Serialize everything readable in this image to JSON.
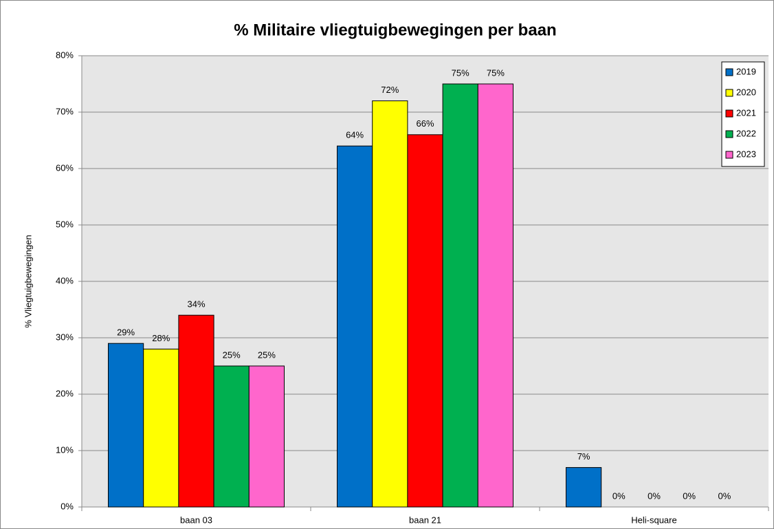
{
  "chart_data": {
    "type": "bar",
    "title": "% Militaire vliegtuigbewegingen per baan",
    "y_label": "% Vliegtuigbewegingen",
    "categories": [
      "baan 03",
      "baan 21",
      "Heli-square"
    ],
    "series": [
      {
        "name": "2019",
        "color": "#0070c8",
        "values": [
          29,
          64,
          7
        ],
        "value_labels": [
          "29%",
          "64%",
          "7%"
        ]
      },
      {
        "name": "2020",
        "color": "#ffff00",
        "values": [
          28,
          72,
          0
        ],
        "value_labels": [
          "28%",
          "72%",
          "0%"
        ]
      },
      {
        "name": "2021",
        "color": "#ff0000",
        "values": [
          34,
          66,
          0
        ],
        "value_labels": [
          "34%",
          "66%",
          "0%"
        ]
      },
      {
        "name": "2022",
        "color": "#00b050",
        "values": [
          25,
          75,
          0
        ],
        "value_labels": [
          "25%",
          "75%",
          "0%"
        ]
      },
      {
        "name": "2023",
        "color": "#ff66cc",
        "values": [
          25,
          75,
          0
        ],
        "value_labels": [
          "25%",
          "75%",
          "0%"
        ]
      }
    ],
    "ylim": [
      0,
      80
    ],
    "yticks": [
      {
        "value": 0,
        "label": "0%"
      },
      {
        "value": 10,
        "label": "10%"
      },
      {
        "value": 20,
        "label": "20%"
      },
      {
        "value": 30,
        "label": "30%"
      },
      {
        "value": 40,
        "label": "40%"
      },
      {
        "value": 50,
        "label": "50%"
      },
      {
        "value": 60,
        "label": "60%"
      },
      {
        "value": 70,
        "label": "70%"
      },
      {
        "value": 80,
        "label": "80%"
      }
    ],
    "grid": true,
    "legend": "upper right"
  }
}
